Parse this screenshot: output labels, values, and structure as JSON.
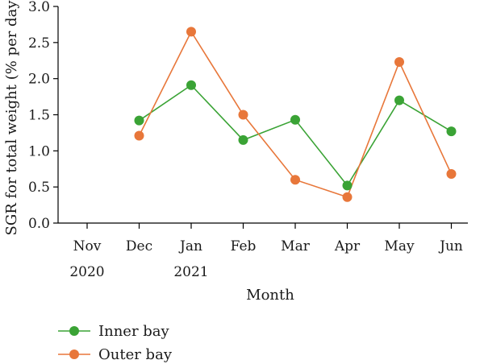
{
  "chart_data": {
    "type": "line",
    "categories": [
      "Nov",
      "Dec",
      "Jan",
      "Feb",
      "Mar",
      "Apr",
      "May",
      "Jun"
    ],
    "category_years": [
      "2020",
      "",
      "2021",
      "",
      "",
      "",
      "",
      ""
    ],
    "xlabel": "Month",
    "ylabel": "SGR for total weight (% per day)",
    "ylim": [
      0,
      3.0
    ],
    "yticks": [
      "0.0",
      "0.5",
      "1.0",
      "1.5",
      "2.0",
      "2.5",
      "3.0"
    ],
    "grid": false,
    "legend_position": "bottom-left",
    "series": [
      {
        "name": "Inner bay",
        "color": "#3aa335",
        "values": [
          null,
          1.42,
          1.91,
          1.15,
          1.43,
          0.52,
          1.7,
          1.27
        ]
      },
      {
        "name": "Outer bay",
        "color": "#e8773a",
        "values": [
          null,
          1.21,
          2.65,
          1.5,
          0.6,
          0.36,
          2.23,
          0.68
        ]
      }
    ]
  }
}
